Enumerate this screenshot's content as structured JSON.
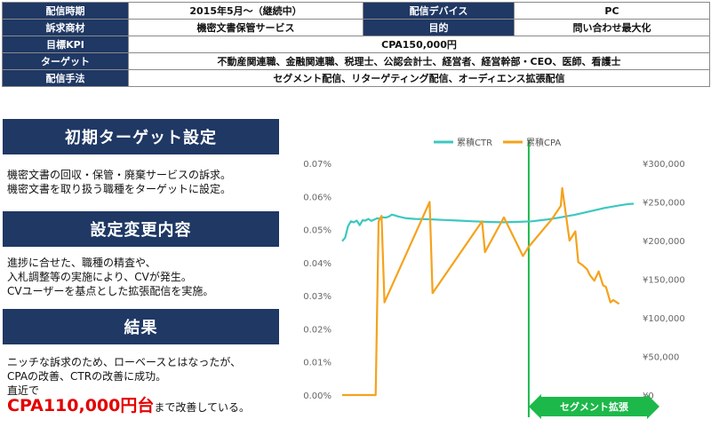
{
  "info_table": {
    "period_label": "配信時期",
    "period_value": "2015年5月～（継続中）",
    "device_label": "配信デバイス",
    "device_value": "PC",
    "product_label": "訴求商材",
    "product_value": "機密文書保管サービス",
    "goal_label": "目的",
    "goal_value": "問い合わせ最大化",
    "kpi_label": "目標KPI",
    "kpi_value": "CPA150,000円",
    "target_label": "ターゲット",
    "target_value": "不動産関連職、金融関連職、税理士、公認会計士、経営者、経営幹部・CEO、医師、看護士",
    "method_label": "配信手法",
    "method_value": "セグメント配信、リターゲティング配信、オーディエンス拡張配信"
  },
  "sections": {
    "initial": {
      "title": "初期ターゲット設定",
      "line1": "機密文書の回収・保管・廃棄サービスの訴求。",
      "line2": "機密文書を取り扱う職種をターゲットに設定。"
    },
    "change": {
      "title": "設定変更内容",
      "line1": "進捗に合せた、職種の精査や、",
      "line2": "入札調整等の実施により、CVが発生。",
      "line3": "CVユーザーを基点とした拡張配信を実施。"
    },
    "result": {
      "title": "結果",
      "line1": "ニッチな訴求のため、ローベースとはなったが、",
      "line2": "CPAの改善、CTRの改善に成功。",
      "line3": "直近で",
      "highlight": "CPA110,000円台",
      "tail": "まで改善している。"
    }
  },
  "colors": {
    "header_bg": "#1f3864",
    "ctr": "#3cc8c0",
    "cpa": "#f5a21c",
    "segment": "#1db84a",
    "highlight": "#e30000"
  },
  "chart_data": {
    "type": "line",
    "title": "",
    "xlabel": "",
    "legend_position": "top",
    "left_axis": {
      "ticks": [
        "0.00%",
        "0.01%",
        "0.02%",
        "0.03%",
        "0.04%",
        "0.05%",
        "0.06%",
        "0.07%"
      ],
      "ylim": [
        0,
        0.07
      ]
    },
    "right_axis": {
      "ticks": [
        "¥0",
        "¥50,000",
        "¥100,000",
        "¥150,000",
        "¥200,000",
        "¥250,000",
        "¥300,000"
      ],
      "ylim": [
        0,
        300000
      ]
    },
    "x_range": [
      0,
      100
    ],
    "series": [
      {
        "name": "累積CTR",
        "axis": "left",
        "x": [
          0,
          1,
          2,
          3,
          4,
          5,
          6,
          7,
          8,
          9,
          10,
          11,
          12,
          13,
          14,
          15,
          16,
          17,
          18,
          19,
          20,
          22,
          25,
          30,
          35,
          40,
          45,
          50,
          55,
          60,
          65,
          70,
          75,
          80,
          85,
          90,
          95,
          98,
          100
        ],
        "values": [
          0.0465,
          0.0475,
          0.051,
          0.0525,
          0.0522,
          0.0527,
          0.0513,
          0.0528,
          0.0527,
          0.0532,
          0.0526,
          0.053,
          0.0534,
          0.0533,
          0.0537,
          0.0536,
          0.0539,
          0.0545,
          0.0543,
          0.054,
          0.0538,
          0.0534,
          0.0532,
          0.0531,
          0.0529,
          0.0527,
          0.0525,
          0.0523,
          0.0522,
          0.0523,
          0.0525,
          0.053,
          0.0537,
          0.0545,
          0.0555,
          0.0565,
          0.0573,
          0.0577,
          0.0578
        ]
      },
      {
        "name": "累積CPA",
        "axis": "right",
        "x": [
          0,
          11.5,
          12.5,
          13.5,
          14.5,
          30,
          31,
          48,
          49,
          55.5,
          62,
          64,
          72,
          75,
          75.5,
          78,
          80,
          81,
          82.5,
          84,
          85,
          86.5,
          88,
          89.5,
          90.5,
          92,
          93,
          95
        ],
        "values": [
          0,
          0,
          225000,
          232000,
          120000,
          250000,
          132000,
          225000,
          185000,
          230000,
          180000,
          192000,
          228000,
          245000,
          268000,
          200000,
          212000,
          172000,
          168000,
          163000,
          155000,
          148000,
          160000,
          142000,
          140000,
          120000,
          123000,
          118000
        ]
      }
    ],
    "annotation": {
      "label": "セグメント拡張",
      "x": 64
    }
  }
}
